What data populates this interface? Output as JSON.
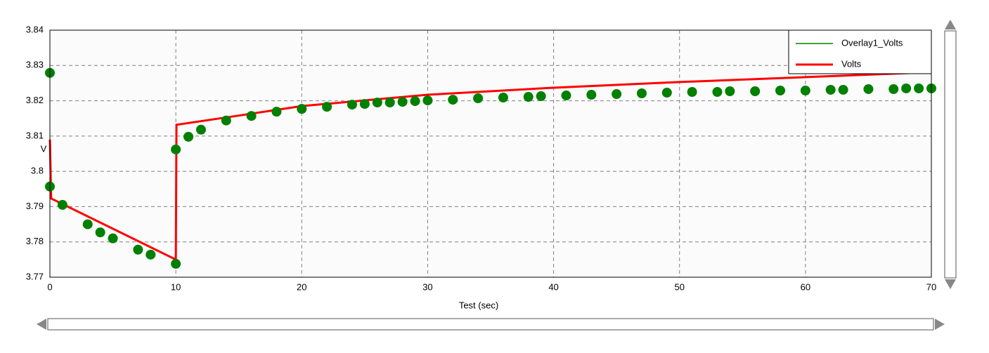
{
  "chart_data": {
    "type": "line",
    "y_label": "V",
    "x_label": "Test  (sec)",
    "xlim": [
      0,
      70
    ],
    "xticks": [
      0,
      10,
      20,
      30,
      40,
      50,
      60,
      70
    ],
    "ylim": [
      3.77,
      3.84
    ],
    "yticks": [
      3.77,
      3.78,
      3.79,
      3.8,
      3.81,
      3.82,
      3.83,
      3.84
    ],
    "grid": true,
    "legend": "upper right",
    "series": [
      {
        "name": "Overlay1_Volts",
        "color": "#008000",
        "style": "markers",
        "x": [
          0,
          0,
          1,
          3,
          4,
          5,
          7,
          8,
          10,
          10,
          11,
          12,
          14,
          16,
          18,
          20,
          22,
          24,
          25,
          26,
          27,
          28,
          29,
          30,
          32,
          34,
          36,
          38,
          39,
          41,
          43,
          45,
          47,
          49,
          51,
          53,
          54,
          56,
          58,
          60,
          62,
          63,
          65,
          67,
          68,
          69,
          70
        ],
        "values": [
          3.8279,
          3.7957,
          3.7905,
          3.785,
          3.7827,
          3.781,
          3.7778,
          3.7764,
          3.7738,
          3.8062,
          3.8098,
          3.8118,
          3.8144,
          3.8157,
          3.8169,
          3.8177,
          3.8183,
          3.8189,
          3.8191,
          3.8195,
          3.8195,
          3.8197,
          3.8199,
          3.8201,
          3.8203,
          3.8207,
          3.8209,
          3.8211,
          3.8213,
          3.8215,
          3.8217,
          3.8219,
          3.8221,
          3.8223,
          3.8225,
          3.8225,
          3.8227,
          3.8227,
          3.8229,
          3.8229,
          3.8231,
          3.8231,
          3.8233,
          3.8233,
          3.8235,
          3.8235,
          3.8235
        ]
      },
      {
        "name": "Volts",
        "color": "#ff0000",
        "style": "line",
        "x": [
          0,
          0.1,
          10,
          10.05,
          15,
          20,
          30,
          40,
          50,
          60,
          70
        ],
        "values": [
          3.809,
          3.7923,
          3.775,
          3.8132,
          3.8158,
          3.8185,
          3.8217,
          3.8237,
          3.8253,
          3.8267,
          3.8281
        ]
      }
    ]
  }
}
